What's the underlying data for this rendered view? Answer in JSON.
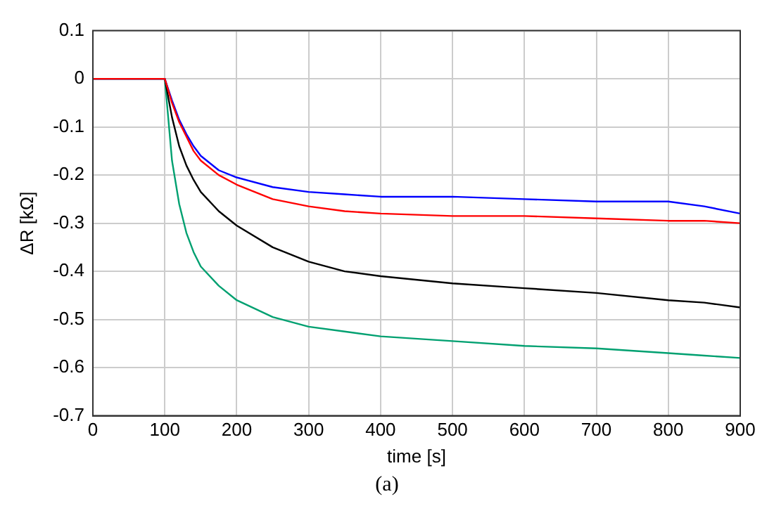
{
  "chart_data": {
    "type": "line",
    "xlabel": "time [s]",
    "ylabel": "ΔR [kΩ]",
    "annotations": [
      "(a)"
    ],
    "x": [
      0,
      100,
      110,
      120,
      130,
      140,
      150,
      175,
      200,
      250,
      300,
      350,
      400,
      500,
      600,
      700,
      800,
      850,
      900
    ],
    "xlim": [
      0,
      900
    ],
    "xticks": [
      0,
      100,
      200,
      300,
      400,
      500,
      600,
      700,
      800,
      900
    ],
    "ylim": [
      -0.7,
      0.1
    ],
    "yticks": [
      -0.7,
      -0.6,
      -0.5,
      -0.4,
      -0.3,
      -0.2,
      -0.1,
      0,
      0.1
    ],
    "grid": true,
    "legend": false,
    "marker": "none",
    "line_style": "solid",
    "series": [
      {
        "color": "#ff0000",
        "values": [
          0,
          0,
          -0.05,
          -0.09,
          -0.12,
          -0.15,
          -0.17,
          -0.2,
          -0.22,
          -0.25,
          -0.265,
          -0.275,
          -0.28,
          -0.285,
          -0.285,
          -0.29,
          -0.295,
          -0.295,
          -0.3
        ]
      },
      {
        "color": "#0000ff",
        "values": [
          0,
          0,
          -0.045,
          -0.085,
          -0.115,
          -0.14,
          -0.16,
          -0.19,
          -0.205,
          -0.225,
          -0.235,
          -0.24,
          -0.245,
          -0.245,
          -0.25,
          -0.255,
          -0.255,
          -0.265,
          -0.28
        ]
      },
      {
        "color": "#000000",
        "values": [
          0,
          0,
          -0.08,
          -0.14,
          -0.18,
          -0.21,
          -0.235,
          -0.275,
          -0.305,
          -0.35,
          -0.38,
          -0.4,
          -0.41,
          -0.425,
          -0.435,
          -0.445,
          -0.46,
          -0.465,
          -0.475
        ]
      },
      {
        "color": "#00a070",
        "values": [
          0,
          0,
          -0.17,
          -0.26,
          -0.32,
          -0.36,
          -0.39,
          -0.43,
          -0.46,
          -0.495,
          -0.515,
          -0.525,
          -0.535,
          -0.545,
          -0.555,
          -0.56,
          -0.57,
          -0.575,
          -0.58
        ]
      }
    ]
  }
}
